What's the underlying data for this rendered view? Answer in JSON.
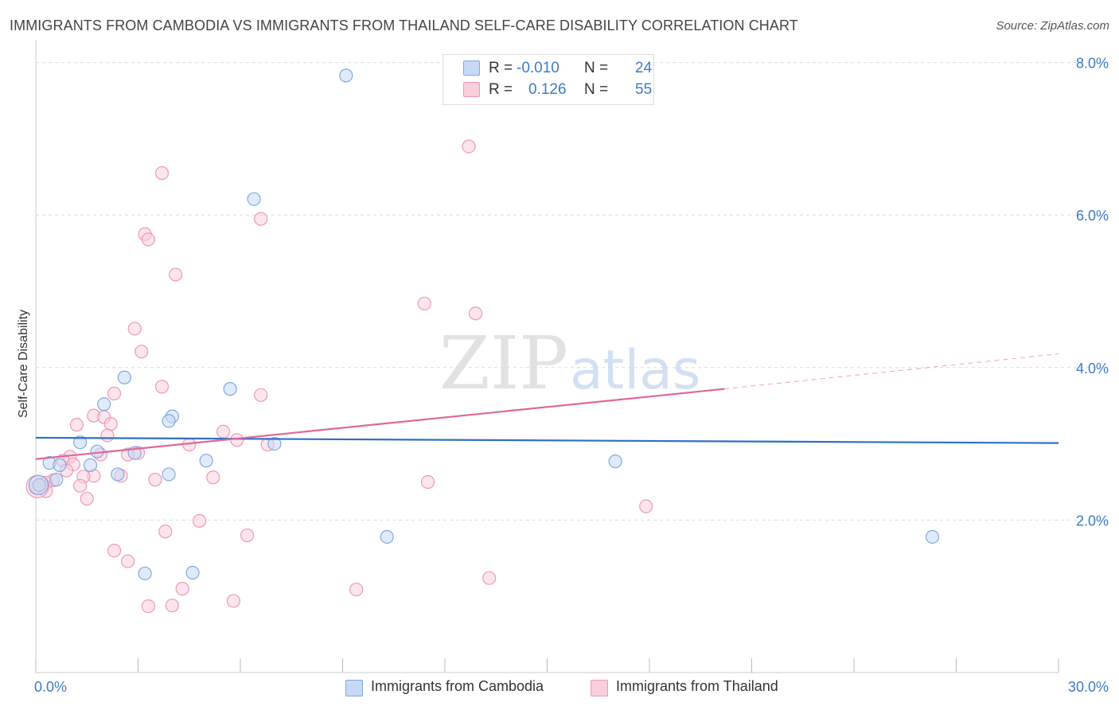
{
  "chart_data": {
    "type": "scatter",
    "title": "IMMIGRANTS FROM CAMBODIA VS IMMIGRANTS FROM THAILAND SELF-CARE DISABILITY CORRELATION CHART",
    "source": "Source: ZipAtlas.com",
    "xlabel": "",
    "ylabel": "Self-Care Disability",
    "xlim": [
      0,
      30
    ],
    "ylim": [
      0,
      8.3
    ],
    "x_tick_labels": [
      "0.0%",
      "30.0%"
    ],
    "y_ticks": [
      2,
      4,
      6,
      8
    ],
    "y_tick_labels": [
      "2.0%",
      "4.0%",
      "6.0%",
      "8.0%"
    ],
    "watermark": {
      "zip": "ZIP",
      "atlas": "atlas"
    },
    "legend": [
      {
        "r_label": "R =",
        "r_value": "-0.010",
        "n_label": "N =",
        "n_value": "24"
      },
      {
        "r_label": "R =",
        "r_value": "0.126",
        "n_label": "N =",
        "n_value": "55"
      }
    ],
    "colors": {
      "cambodia_fill": "#c6d9f5",
      "cambodia_stroke": "#7fa8e0",
      "cambodia_line": "#2f6fc7",
      "thailand_fill": "#f9cfdc",
      "thailand_stroke": "#ec9ab5",
      "thailand_line": "#e0679a",
      "grid": "#dcdcdc",
      "tick_label": "#3d7ac7"
    },
    "series": [
      {
        "name": "Immigrants from Cambodia",
        "trend": {
          "x0": 0,
          "y0": 3.08,
          "x1": 30,
          "y1": 3.01
        },
        "points": [
          [
            9.1,
            7.83
          ],
          [
            6.4,
            6.21
          ],
          [
            2.6,
            3.87
          ],
          [
            2.0,
            3.52
          ],
          [
            5.7,
            3.72
          ],
          [
            4.0,
            3.36
          ],
          [
            3.9,
            3.3
          ],
          [
            7.0,
            3.0
          ],
          [
            1.3,
            3.02
          ],
          [
            1.8,
            2.9
          ],
          [
            2.9,
            2.88
          ],
          [
            0.4,
            2.75
          ],
          [
            1.6,
            2.72
          ],
          [
            0.7,
            2.72
          ],
          [
            5.0,
            2.78
          ],
          [
            17.0,
            2.77
          ],
          [
            2.4,
            2.6
          ],
          [
            3.9,
            2.6
          ],
          [
            0.1,
            2.46
          ],
          [
            0.6,
            2.53
          ],
          [
            10.3,
            1.78
          ],
          [
            26.3,
            1.78
          ],
          [
            3.2,
            1.3
          ],
          [
            4.6,
            1.31
          ]
        ]
      },
      {
        "name": "Immigrants from Thailand",
        "trend": {
          "x0": 0,
          "y0": 2.8,
          "x1": 20.2,
          "y1": 3.72,
          "dash_x1": 30,
          "dash_y1": 4.18
        },
        "points": [
          [
            12.7,
            6.9
          ],
          [
            3.7,
            6.55
          ],
          [
            6.6,
            5.95
          ],
          [
            3.2,
            5.75
          ],
          [
            3.3,
            5.68
          ],
          [
            4.1,
            5.22
          ],
          [
            11.4,
            4.84
          ],
          [
            12.9,
            4.71
          ],
          [
            2.9,
            4.51
          ],
          [
            3.1,
            4.21
          ],
          [
            3.7,
            3.75
          ],
          [
            2.3,
            3.66
          ],
          [
            6.6,
            3.64
          ],
          [
            1.7,
            3.37
          ],
          [
            2.0,
            3.35
          ],
          [
            1.2,
            3.25
          ],
          [
            2.2,
            3.26
          ],
          [
            5.5,
            3.16
          ],
          [
            2.1,
            3.11
          ],
          [
            5.9,
            3.05
          ],
          [
            4.5,
            2.99
          ],
          [
            6.8,
            2.99
          ],
          [
            3.0,
            2.88
          ],
          [
            2.7,
            2.86
          ],
          [
            1.9,
            2.86
          ],
          [
            1.0,
            2.83
          ],
          [
            0.8,
            2.78
          ],
          [
            1.1,
            2.73
          ],
          [
            0.9,
            2.65
          ],
          [
            1.7,
            2.58
          ],
          [
            1.4,
            2.57
          ],
          [
            2.5,
            2.58
          ],
          [
            5.2,
            2.56
          ],
          [
            3.5,
            2.53
          ],
          [
            0.5,
            2.52
          ],
          [
            0.3,
            2.49
          ],
          [
            0.2,
            2.47
          ],
          [
            0.1,
            2.45
          ],
          [
            0.0,
            2.42
          ],
          [
            11.5,
            2.5
          ],
          [
            1.3,
            2.45
          ],
          [
            1.5,
            2.28
          ],
          [
            17.9,
            2.18
          ],
          [
            4.8,
            1.99
          ],
          [
            3.8,
            1.85
          ],
          [
            6.2,
            1.8
          ],
          [
            2.3,
            1.6
          ],
          [
            2.7,
            1.46
          ],
          [
            13.3,
            1.24
          ],
          [
            4.3,
            1.1
          ],
          [
            9.4,
            1.09
          ],
          [
            5.8,
            0.94
          ],
          [
            3.3,
            0.87
          ],
          [
            4.0,
            0.88
          ],
          [
            0.3,
            2.38
          ]
        ]
      }
    ]
  }
}
